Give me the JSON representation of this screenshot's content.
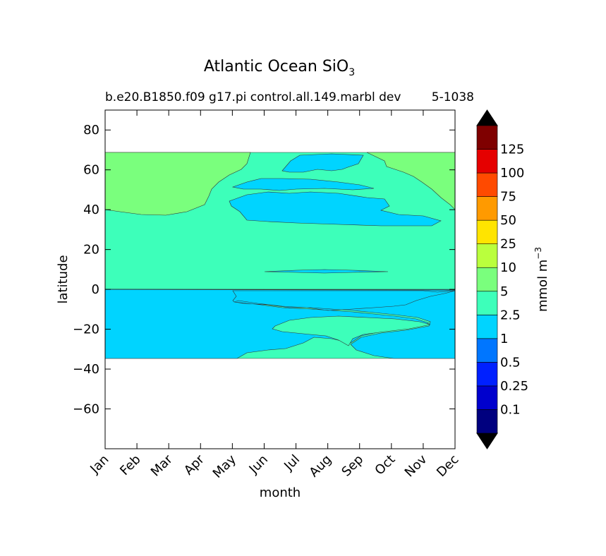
{
  "chart_data": {
    "type": "contourf",
    "title": "Atlantic Ocean SiO",
    "title_subscript": "3",
    "subtitle": "b.e20.B1850.f09 g17.pi control.all.149.marbl dev",
    "subtitle_right": "5-1038",
    "xlabel": "month",
    "ylabel": "latitude",
    "x_categories": [
      "Jan",
      "Feb",
      "Mar",
      "Apr",
      "May",
      "Jun",
      "Jul",
      "Aug",
      "Sep",
      "Oct",
      "Nov",
      "Dec"
    ],
    "x_range": [
      1,
      12
    ],
    "ylim": [
      -80,
      90
    ],
    "y_ticks": [
      -60,
      -40,
      -20,
      0,
      20,
      40,
      60,
      80
    ],
    "y_tick_labels": [
      "−60",
      "−40",
      "−20",
      "0",
      "20",
      "40",
      "60",
      "80"
    ],
    "data_lat_range": [
      -34,
      69
    ],
    "grid": false,
    "colorbar": {
      "label": "mmol m",
      "label_superscript": "−3",
      "levels": [
        "0.1",
        "0.25",
        "0.5",
        "1",
        "2.5",
        "5",
        "10",
        "25",
        "50",
        "75",
        "100",
        "125"
      ],
      "colors": [
        "#00007f",
        "#0000cd",
        "#0020ff",
        "#0076ff",
        "#00d4ff",
        "#3dffba",
        "#7aff7d",
        "#baff3d",
        "#ffe400",
        "#ff9a00",
        "#ff4a00",
        "#e50000",
        "#7f0000"
      ],
      "extend": "both",
      "under_color": "#000000",
      "over_color": "#000000"
    },
    "regions": [
      {
        "name": "band 2.5-5 (background)",
        "color": "#3dffba"
      },
      {
        "name": "band 5-10 (northern winter)",
        "color": "#7aff7d"
      },
      {
        "name": "band 1-2.5 (northern summer, southern subtropics)",
        "color": "#00d4ff"
      }
    ]
  }
}
